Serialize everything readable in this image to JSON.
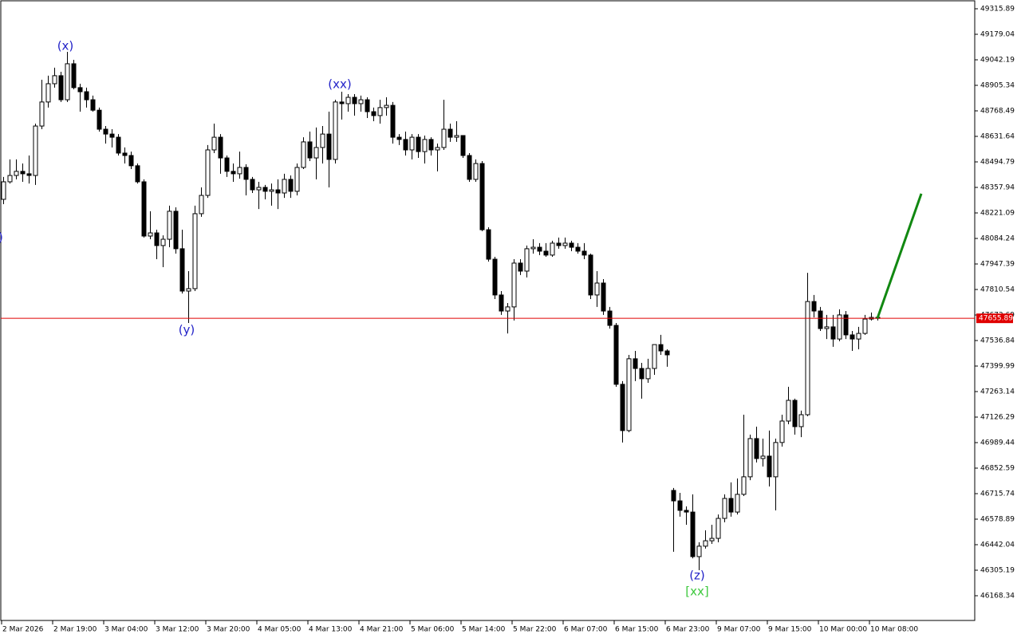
{
  "chart_data": {
    "type": "candlestick",
    "ylim": [
      46035.7,
      49362.9
    ],
    "yticks": [
      49315.89,
      49179.04,
      49042.19,
      48905.34,
      48768.49,
      48631.64,
      48494.79,
      48357.94,
      48221.09,
      48084.24,
      47947.39,
      47810.54,
      47673.69,
      47536.84,
      47399.99,
      47263.14,
      47126.29,
      46989.44,
      46852.59,
      46715.74,
      46578.89,
      46442.04,
      46305.19,
      46168.34
    ],
    "current_price": 47655.89,
    "current_price_color": "#e00000",
    "categories": [
      "2 Mar 2026",
      null,
      null,
      null,
      null,
      null,
      null,
      null,
      "2 Mar 19:00",
      null,
      null,
      null,
      null,
      null,
      null,
      null,
      "3 Mar 04:00",
      null,
      null,
      null,
      null,
      null,
      null,
      null,
      "3 Mar 12:00",
      null,
      null,
      null,
      null,
      null,
      null,
      null,
      "3 Mar 20:00",
      null,
      null,
      null,
      null,
      null,
      null,
      null,
      "4 Mar 05:00",
      null,
      null,
      null,
      null,
      null,
      null,
      null,
      "4 Mar 13:00",
      null,
      null,
      null,
      null,
      null,
      null,
      null,
      "4 Mar 21:00",
      null,
      null,
      null,
      null,
      null,
      null,
      null,
      "5 Mar 06:00",
      null,
      null,
      null,
      null,
      null,
      null,
      null,
      "5 Mar 14:00",
      null,
      null,
      null,
      null,
      null,
      null,
      null,
      "5 Mar 22:00",
      null,
      null,
      null,
      null,
      null,
      null,
      null,
      "6 Mar 07:00",
      null,
      null,
      null,
      null,
      null,
      null,
      null,
      "6 Mar 15:00",
      null,
      null,
      null,
      null,
      null,
      null,
      null,
      "6 Mar 23:00",
      null,
      null,
      null,
      null,
      null,
      null,
      null,
      "9 Mar 07:00",
      null,
      null,
      null,
      null,
      null,
      null,
      null,
      "9 Mar 15:00",
      null,
      null,
      null,
      null,
      null,
      null,
      null,
      "10 Mar 00:00",
      null,
      null,
      null,
      null,
      null,
      null,
      null,
      "10 Mar 08:00",
      null
    ],
    "open": [
      48294,
      48388,
      48422,
      48444,
      48431,
      48422,
      48687,
      48816,
      48914,
      48957,
      48828,
      49021,
      48893,
      48871,
      48828,
      48772,
      48670,
      48644,
      48627,
      48542,
      48529,
      48474,
      48388,
      48097,
      48114,
      48046,
      48080,
      48230,
      48029,
      47802,
      47815,
      48217,
      48315,
      48559,
      48627,
      48516,
      48444,
      48431,
      48465,
      48401,
      48345,
      48358,
      48337,
      48345,
      48328,
      48401,
      48337,
      48465,
      48602,
      48516,
      48572,
      48644,
      48508,
      48816,
      48807,
      48841,
      48807,
      48828,
      48764,
      48743,
      48786,
      48798,
      48627,
      48615,
      48559,
      48627,
      48550,
      48615,
      48559,
      48572,
      48670,
      48627,
      48636,
      48529,
      48401,
      48486,
      48131,
      47973,
      47781,
      47695,
      47717,
      47952,
      47909,
      48029,
      48037,
      48016,
      47995,
      48059,
      48046,
      48059,
      48037,
      48016,
      47995,
      47781,
      47845,
      47695,
      47618,
      47302,
      47054,
      47439,
      47387,
      47332,
      47387,
      47515,
      47481,
      46733,
      46677,
      46626,
      46617,
      46378,
      46434,
      46463,
      46476,
      46583,
      46690,
      46617,
      46712,
      46806,
      47011,
      46904,
      46917,
      46806,
      46990,
      47105,
      47216,
      47075,
      47139,
      47746,
      47695,
      47601,
      47610,
      47545,
      47674,
      47567,
      47545,
      47575,
      47652,
      47661
    ],
    "high": [
      48414,
      48508,
      48508,
      48486,
      48529,
      48700,
      48935,
      48957,
      49000,
      48978,
      49085,
      49042,
      48914,
      48893,
      48850,
      48786,
      48687,
      48670,
      48644,
      48572,
      48550,
      48486,
      48401,
      48230,
      48131,
      48101,
      48260,
      48251,
      48131,
      47909,
      48260,
      48358,
      48585,
      48700,
      48644,
      48529,
      48486,
      48550,
      48482,
      48414,
      48388,
      48371,
      48379,
      48401,
      48431,
      48422,
      48486,
      48627,
      48657,
      48679,
      48687,
      48764,
      48828,
      48871,
      48858,
      48858,
      48850,
      48841,
      48786,
      48828,
      48841,
      48816,
      48644,
      48657,
      48644,
      48644,
      48636,
      48627,
      48593,
      48828,
      48700,
      48713,
      48636,
      48542,
      48508,
      48499,
      48144,
      47986,
      47802,
      47738,
      47973,
      47973,
      48046,
      48080,
      48059,
      48059,
      48072,
      48089,
      48089,
      48072,
      48059,
      48059,
      48003,
      47909,
      47866,
      47717,
      47631,
      47319,
      47460,
      47481,
      47417,
      47439,
      47515,
      47567,
      47490,
      46746,
      46720,
      46647,
      46712,
      46455,
      46519,
      46549,
      46604,
      46712,
      46776,
      46797,
      47139,
      47032,
      47075,
      47011,
      47054,
      47011,
      47139,
      47289,
      47225,
      47161,
      47900,
      47781,
      47717,
      47674,
      47674,
      47704,
      47695,
      47588,
      47610,
      47674,
      47687,
      47674
    ],
    "low": [
      48268,
      48379,
      48401,
      48388,
      48379,
      48371,
      48670,
      48786,
      48893,
      48816,
      48816,
      48884,
      48764,
      48786,
      48764,
      48657,
      48593,
      48572,
      48529,
      48486,
      48456,
      48379,
      48089,
      48080,
      47973,
      47930,
      48037,
      48003,
      47789,
      47631,
      47802,
      48200,
      48302,
      48542,
      48431,
      48414,
      48388,
      48405,
      48315,
      48328,
      48242,
      48294,
      48260,
      48242,
      48302,
      48302,
      48315,
      48456,
      48499,
      48401,
      48486,
      48358,
      48486,
      48722,
      48764,
      48743,
      48764,
      48730,
      48713,
      48700,
      48743,
      48593,
      48585,
      48529,
      48508,
      48516,
      48486,
      48529,
      48444,
      48559,
      48602,
      48602,
      48516,
      48388,
      48388,
      48123,
      47960,
      47759,
      47674,
      47575,
      47644,
      47888,
      47875,
      48003,
      47995,
      47986,
      47986,
      48029,
      48029,
      48016,
      48003,
      47973,
      47759,
      47717,
      47674,
      47601,
      47289,
      46990,
      47045,
      47319,
      47225,
      47310,
      47353,
      47460,
      47396,
      46404,
      46592,
      46549,
      46369,
      46305,
      46421,
      46446,
      46455,
      46562,
      46592,
      46604,
      46703,
      46788,
      46883,
      46861,
      46754,
      46626,
      46968,
      47088,
      47032,
      47019,
      47131,
      47661,
      47588,
      47545,
      47503,
      47533,
      47545,
      47481,
      47490,
      47567,
      47644,
      47644
    ],
    "close": [
      48388,
      48422,
      48444,
      48431,
      48422,
      48687,
      48816,
      48914,
      48957,
      48828,
      49021,
      48893,
      48871,
      48828,
      48772,
      48670,
      48644,
      48627,
      48542,
      48529,
      48474,
      48388,
      48097,
      48114,
      48046,
      48080,
      48230,
      48029,
      47802,
      47815,
      48217,
      48315,
      48559,
      48627,
      48516,
      48444,
      48431,
      48465,
      48401,
      48345,
      48358,
      48337,
      48345,
      48328,
      48401,
      48337,
      48465,
      48602,
      48516,
      48572,
      48644,
      48508,
      48816,
      48807,
      48841,
      48807,
      48828,
      48764,
      48743,
      48786,
      48798,
      48627,
      48615,
      48559,
      48627,
      48550,
      48615,
      48559,
      48572,
      48670,
      48627,
      48636,
      48529,
      48401,
      48486,
      48131,
      47973,
      47781,
      47695,
      47717,
      47952,
      47909,
      48029,
      48037,
      48016,
      47995,
      48059,
      48046,
      48059,
      48037,
      48016,
      47995,
      47781,
      47845,
      47695,
      47618,
      47302,
      47054,
      47439,
      47387,
      47332,
      47387,
      47515,
      47481,
      47460,
      46677,
      46626,
      46617,
      46378,
      46434,
      46463,
      46476,
      46583,
      46690,
      46617,
      46712,
      46806,
      47011,
      46904,
      46917,
      46806,
      46990,
      47105,
      47216,
      47075,
      47139,
      47746,
      47695,
      47601,
      47610,
      47545,
      47674,
      47567,
      47545,
      47575,
      47652,
      47661,
      47655.89
    ],
    "annotations": [
      {
        "text": ")",
        "color": "#2323c8"
      },
      {
        "text": "(x)",
        "color": "#2323c8"
      },
      {
        "text": "(xx)",
        "color": "#2323c8"
      },
      {
        "text": "(y)",
        "color": "#2323c8"
      },
      {
        "text": "(z)",
        "color": "#2323c8"
      },
      {
        "text": "[xx]",
        "color": "#3cc83c"
      }
    ],
    "projection": {
      "color": "#118811",
      "values": [
        47655.89,
        48324
      ]
    }
  }
}
